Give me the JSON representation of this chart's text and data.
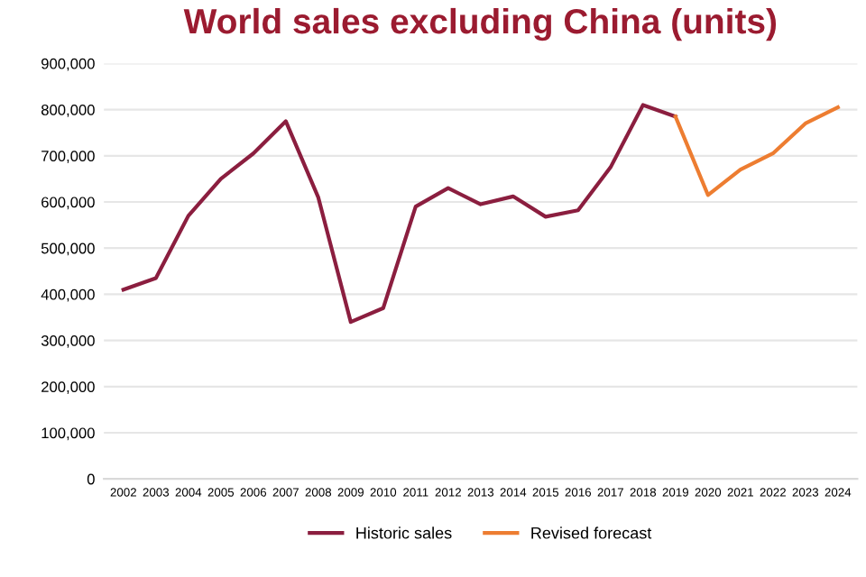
{
  "chart_data": {
    "type": "line",
    "title": "World sales excluding China (units)",
    "categories": [
      "2002",
      "2003",
      "2004",
      "2005",
      "2006",
      "2007",
      "2008",
      "2009",
      "2010",
      "2011",
      "2012",
      "2013",
      "2014",
      "2015",
      "2016",
      "2017",
      "2018",
      "2019",
      "2020",
      "2021",
      "2022",
      "2023",
      "2024"
    ],
    "series": [
      {
        "name": "Historic sales",
        "color": "#8b1e3f",
        "values": [
          410000,
          435000,
          570000,
          650000,
          705000,
          775000,
          610000,
          340000,
          370000,
          590000,
          630000,
          595000,
          612000,
          568000,
          582000,
          675000,
          810000,
          785000,
          null,
          null,
          null,
          null,
          null
        ]
      },
      {
        "name": "Revised forecast",
        "color": "#ed7d31",
        "values": [
          null,
          null,
          null,
          null,
          null,
          null,
          null,
          null,
          null,
          null,
          null,
          null,
          null,
          null,
          null,
          null,
          null,
          785000,
          615000,
          670000,
          705000,
          770000,
          805000
        ]
      }
    ],
    "ylim": [
      0,
      900000
    ],
    "yticks": [
      {
        "value": 0,
        "label": "0"
      },
      {
        "value": 100000,
        "label": "100,000"
      },
      {
        "value": 200000,
        "label": "200,000"
      },
      {
        "value": 300000,
        "label": "300,000"
      },
      {
        "value": 400000,
        "label": "400,000"
      },
      {
        "value": 500000,
        "label": "500,000"
      },
      {
        "value": 600000,
        "label": "600,000"
      },
      {
        "value": 700000,
        "label": "700,000"
      },
      {
        "value": 800000,
        "label": "800,000"
      },
      {
        "value": 900000,
        "label": "900,000"
      }
    ],
    "grid": "y",
    "legend": "bottom",
    "marker": "none",
    "line_style": "solid"
  }
}
